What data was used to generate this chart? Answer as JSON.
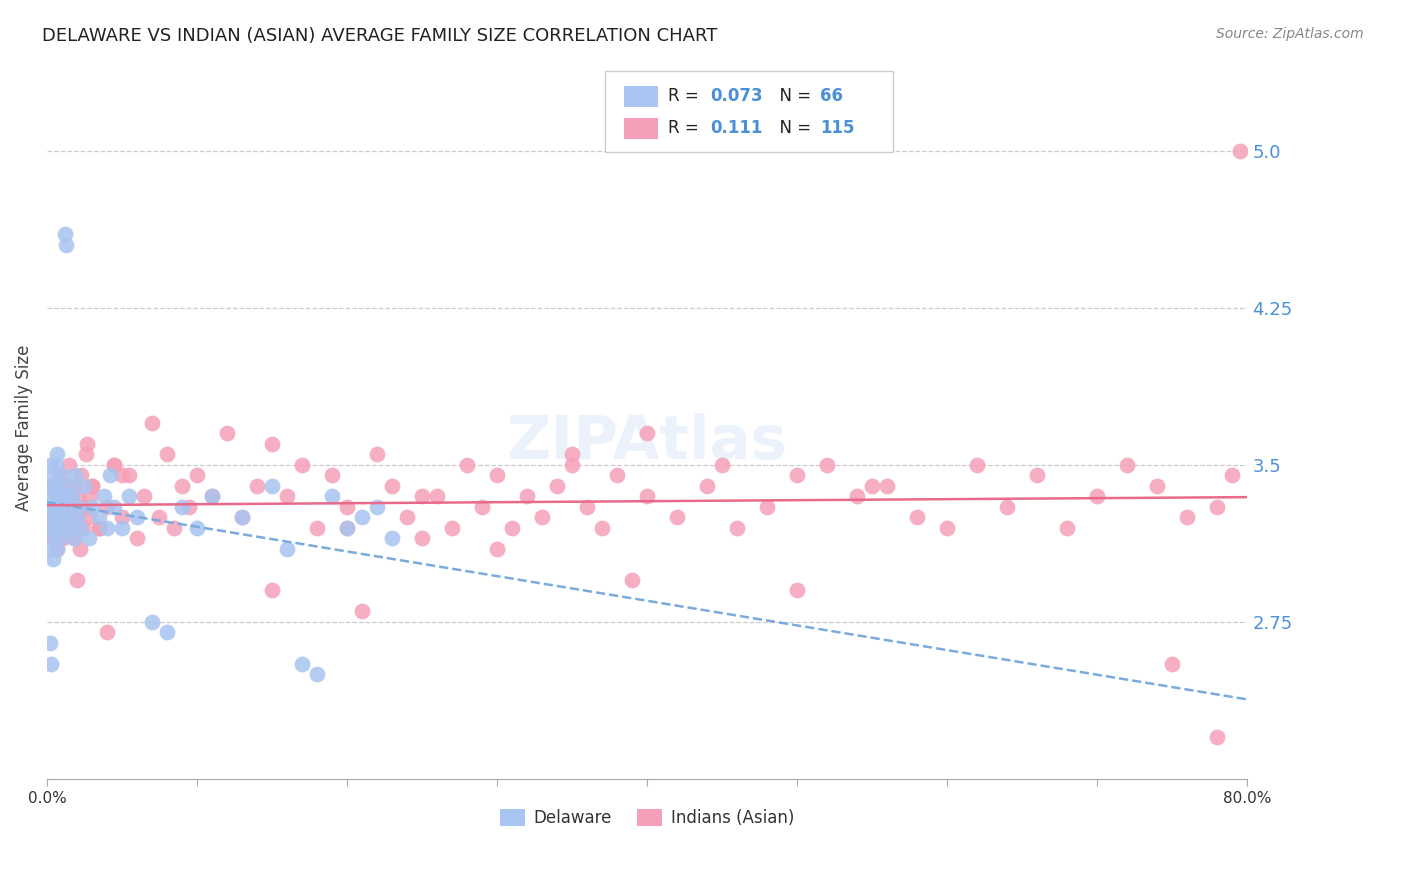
{
  "title": "DELAWARE VS INDIAN (ASIAN) AVERAGE FAMILY SIZE CORRELATION CHART",
  "source": "Source: ZipAtlas.com",
  "ylabel": "Average Family Size",
  "xlim": [
    0.0,
    0.8
  ],
  "ylim": [
    2.0,
    5.35
  ],
  "yticks_right": [
    2.75,
    3.5,
    4.25,
    5.0
  ],
  "xticks": [
    0.0,
    0.1,
    0.2,
    0.3,
    0.4,
    0.5,
    0.6,
    0.7,
    0.8
  ],
  "xticklabels": [
    "0.0%",
    "",
    "",
    "",
    "",
    "",
    "",
    "",
    "80.0%"
  ],
  "background_color": "#ffffff",
  "grid_color": "#cccccc",
  "delaware_color": "#a8c4f0",
  "indians_color": "#f5a0b8",
  "delaware_line_color": "#7aaade",
  "indians_line_color": "#e8698a",
  "right_label_color": "#4a90d9",
  "delaware_R": 0.073,
  "delaware_N": 66,
  "indians_R": 0.111,
  "indians_N": 115,
  "delaware_x": [
    0.001,
    0.002,
    0.002,
    0.003,
    0.003,
    0.004,
    0.004,
    0.005,
    0.005,
    0.006,
    0.006,
    0.007,
    0.007,
    0.008,
    0.008,
    0.009,
    0.01,
    0.01,
    0.011,
    0.012,
    0.013,
    0.014,
    0.015,
    0.016,
    0.017,
    0.018,
    0.019,
    0.02,
    0.021,
    0.022,
    0.025,
    0.028,
    0.03,
    0.035,
    0.038,
    0.04,
    0.042,
    0.045,
    0.05,
    0.055,
    0.06,
    0.07,
    0.08,
    0.09,
    0.1,
    0.11,
    0.13,
    0.15,
    0.16,
    0.17,
    0.18,
    0.19,
    0.2,
    0.21,
    0.22,
    0.23,
    0.002,
    0.003,
    0.004,
    0.005,
    0.006,
    0.007,
    0.012,
    0.013,
    0.002,
    0.003
  ],
  "delaware_y": [
    3.1,
    3.3,
    3.5,
    3.15,
    3.35,
    3.05,
    3.45,
    3.2,
    3.4,
    3.25,
    3.35,
    3.1,
    3.4,
    3.2,
    3.3,
    3.15,
    3.35,
    3.45,
    3.25,
    4.6,
    4.55,
    3.3,
    3.4,
    3.2,
    3.35,
    3.15,
    3.45,
    3.25,
    3.3,
    3.2,
    3.4,
    3.15,
    3.3,
    3.25,
    3.35,
    3.2,
    3.45,
    3.3,
    3.2,
    3.35,
    3.25,
    2.75,
    2.7,
    3.3,
    3.2,
    3.35,
    3.25,
    3.4,
    3.1,
    2.55,
    2.5,
    3.35,
    3.2,
    3.25,
    3.3,
    3.15,
    3.4,
    3.2,
    3.3,
    3.25,
    3.5,
    3.55,
    3.25,
    3.35,
    2.65,
    2.55
  ],
  "indians_x": [
    0.001,
    0.002,
    0.003,
    0.004,
    0.005,
    0.006,
    0.007,
    0.008,
    0.009,
    0.01,
    0.011,
    0.012,
    0.013,
    0.014,
    0.015,
    0.016,
    0.017,
    0.018,
    0.019,
    0.02,
    0.021,
    0.022,
    0.023,
    0.024,
    0.025,
    0.026,
    0.027,
    0.028,
    0.029,
    0.03,
    0.035,
    0.04,
    0.045,
    0.05,
    0.055,
    0.06,
    0.065,
    0.07,
    0.075,
    0.08,
    0.085,
    0.09,
    0.095,
    0.1,
    0.11,
    0.12,
    0.13,
    0.14,
    0.15,
    0.16,
    0.17,
    0.18,
    0.19,
    0.2,
    0.21,
    0.22,
    0.23,
    0.24,
    0.25,
    0.26,
    0.27,
    0.28,
    0.29,
    0.3,
    0.31,
    0.32,
    0.33,
    0.34,
    0.35,
    0.36,
    0.37,
    0.38,
    0.39,
    0.4,
    0.42,
    0.44,
    0.46,
    0.48,
    0.5,
    0.52,
    0.54,
    0.56,
    0.58,
    0.6,
    0.62,
    0.64,
    0.66,
    0.68,
    0.7,
    0.72,
    0.74,
    0.76,
    0.78,
    0.79,
    0.795,
    0.01,
    0.015,
    0.02,
    0.025,
    0.03,
    0.035,
    0.04,
    0.045,
    0.05,
    0.15,
    0.2,
    0.25,
    0.3,
    0.35,
    0.4,
    0.45,
    0.5,
    0.55,
    0.75,
    0.78
  ],
  "indians_y": [
    3.2,
    3.3,
    3.15,
    3.4,
    3.25,
    3.35,
    3.1,
    3.45,
    3.2,
    3.3,
    3.15,
    3.4,
    3.25,
    3.35,
    3.5,
    3.2,
    3.3,
    3.15,
    3.4,
    3.25,
    3.35,
    3.1,
    3.45,
    3.2,
    3.3,
    3.55,
    3.6,
    3.25,
    3.35,
    3.4,
    3.2,
    3.3,
    3.5,
    3.25,
    3.45,
    3.15,
    3.35,
    3.7,
    3.25,
    3.55,
    3.2,
    3.4,
    3.3,
    3.45,
    3.35,
    3.65,
    3.25,
    3.4,
    2.9,
    3.35,
    3.5,
    3.2,
    3.45,
    3.3,
    2.8,
    3.55,
    3.4,
    3.25,
    3.15,
    3.35,
    3.2,
    3.5,
    3.3,
    3.45,
    3.2,
    3.35,
    3.25,
    3.4,
    3.5,
    3.3,
    3.2,
    3.45,
    2.95,
    3.35,
    3.25,
    3.4,
    3.2,
    3.3,
    3.45,
    3.5,
    3.35,
    3.4,
    3.25,
    3.2,
    3.5,
    3.3,
    3.45,
    3.2,
    3.35,
    3.5,
    3.4,
    3.25,
    3.3,
    3.45,
    5.0,
    3.25,
    3.35,
    2.95,
    3.3,
    3.4,
    3.2,
    2.7,
    3.5,
    3.45,
    3.6,
    3.2,
    3.35,
    3.1,
    3.55,
    3.65,
    3.5,
    2.9,
    3.4,
    2.55,
    2.2
  ]
}
